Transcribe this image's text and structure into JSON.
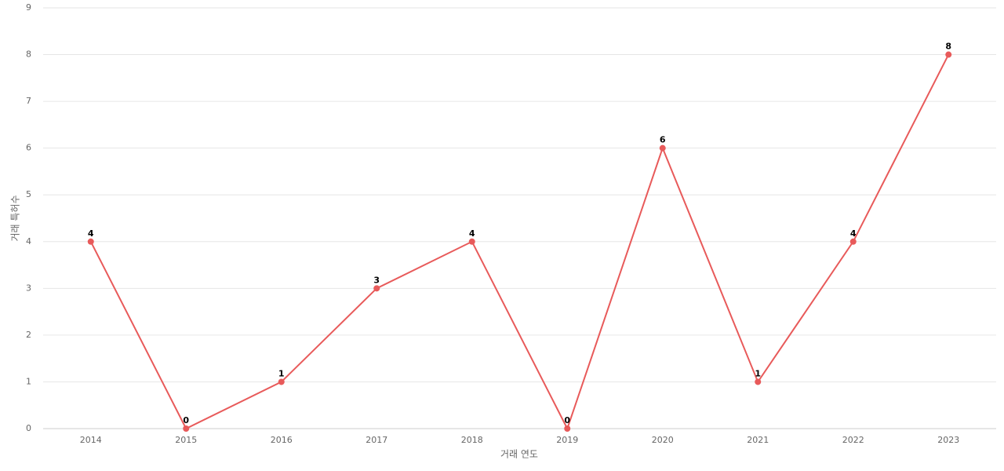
{
  "chart_data": {
    "type": "line",
    "x_label": "거래 연도",
    "y_label": "거래 특허수",
    "categories": [
      "2014",
      "2015",
      "2016",
      "2017",
      "2018",
      "2019",
      "2020",
      "2021",
      "2022",
      "2023"
    ],
    "series": [
      {
        "name": "거래 특허수",
        "color": "#e85a5a",
        "values": [
          4,
          0,
          1,
          3,
          4,
          0,
          6,
          1,
          4,
          8
        ]
      }
    ],
    "ylim": [
      0,
      9
    ],
    "yticks": [
      0,
      1,
      2,
      3,
      4,
      5,
      6,
      7,
      8,
      9
    ],
    "grid": true
  }
}
